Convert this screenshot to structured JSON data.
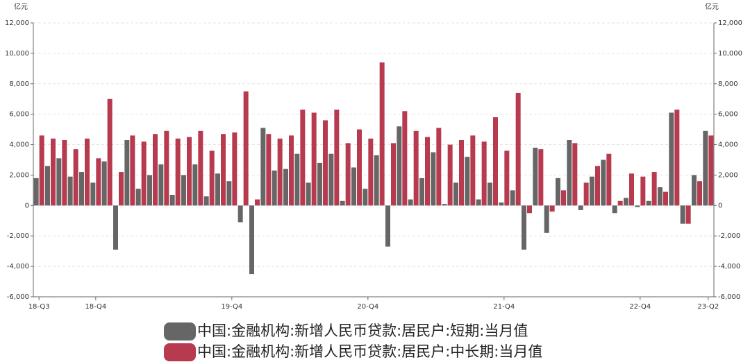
{
  "chart_data": {
    "type": "bar",
    "y_unit": "亿元",
    "y2_unit": "亿元",
    "categories": [
      "18-Q3",
      null,
      null,
      null,
      null,
      "18-Q4",
      null,
      null,
      null,
      null,
      null,
      null,
      null,
      null,
      null,
      null,
      null,
      "19-Q4",
      null,
      null,
      null,
      null,
      null,
      null,
      null,
      null,
      null,
      null,
      null,
      "20-Q4",
      null,
      null,
      null,
      null,
      null,
      null,
      null,
      null,
      null,
      null,
      null,
      "21-Q4",
      null,
      null,
      null,
      null,
      null,
      null,
      null,
      null,
      null,
      null,
      null,
      "22-Q4",
      null,
      null,
      null,
      null,
      null,
      "23-Q2"
    ],
    "series": [
      {
        "name": "中国:金融机构:新增人民币贷款:居民户:短期:当月值",
        "color": "#666666",
        "values": [
          1800,
          2600,
          3100,
          1900,
          2200,
          1500,
          2900,
          -2900,
          4300,
          1100,
          2000,
          2700,
          700,
          2000,
          2700,
          600,
          2100,
          1600,
          -1100,
          -4500,
          5100,
          2300,
          2400,
          3400,
          1500,
          2800,
          3400,
          300,
          2500,
          1100,
          3300,
          -2700,
          5200,
          400,
          1800,
          3500,
          100,
          1500,
          3200,
          400,
          1500,
          200,
          1000,
          -2900,
          3800,
          -1800,
          1800,
          4300,
          -300,
          1900,
          3000,
          -500,
          500,
          -100,
          300,
          1200,
          6100,
          -1200,
          2000,
          4900
        ]
      },
      {
        "name": "中国:金融机构:新增人民币贷款:居民户:中长期:当月值",
        "color": "#b83a4f",
        "values": [
          4600,
          4400,
          4300,
          3700,
          4400,
          3100,
          7000,
          2200,
          4600,
          4200,
          4700,
          4900,
          4400,
          4500,
          4900,
          3600,
          4700,
          4800,
          7500,
          400,
          4700,
          4400,
          4600,
          6300,
          6100,
          5600,
          6300,
          4100,
          5000,
          4400,
          9400,
          4100,
          6200,
          4900,
          4500,
          5100,
          4000,
          4300,
          4600,
          4200,
          5800,
          3600,
          7400,
          -500,
          3700,
          -400,
          1000,
          4100,
          1500,
          2600,
          3400,
          300,
          2100,
          1900,
          2200,
          900,
          6300,
          -1200,
          1600,
          4600
        ]
      }
    ],
    "ylim": [
      -6000,
      12000
    ],
    "yticks": [
      {
        "value": -6000,
        "label": "-6,000"
      },
      {
        "value": -4000,
        "label": "-4,000"
      },
      {
        "value": -2000,
        "label": "-2,000"
      },
      0,
      {
        "value": 2000,
        "label": "2,000"
      },
      {
        "value": 4000,
        "label": "4,000"
      },
      {
        "value": 6000,
        "label": "6,000"
      },
      {
        "value": 8000,
        "label": "8,000"
      },
      {
        "value": 10000,
        "label": "10,000"
      },
      {
        "value": 12000,
        "label": "12,000"
      }
    ],
    "y2lim": [
      -6000,
      12000
    ],
    "y2ticks": [
      {
        "value": -6000,
        "label": "-6,000"
      },
      {
        "value": -4000,
        "label": "-4,000"
      },
      {
        "value": -2000,
        "label": "-2,000"
      },
      0,
      {
        "value": 2000,
        "label": "2,000"
      },
      {
        "value": 4000,
        "label": "4,000"
      },
      {
        "value": 6000,
        "label": "6,000"
      },
      {
        "value": 8000,
        "label": "8,000"
      },
      {
        "value": 10000,
        "label": "10,000"
      },
      {
        "value": 12000,
        "label": "12,000"
      }
    ],
    "grid": true
  }
}
